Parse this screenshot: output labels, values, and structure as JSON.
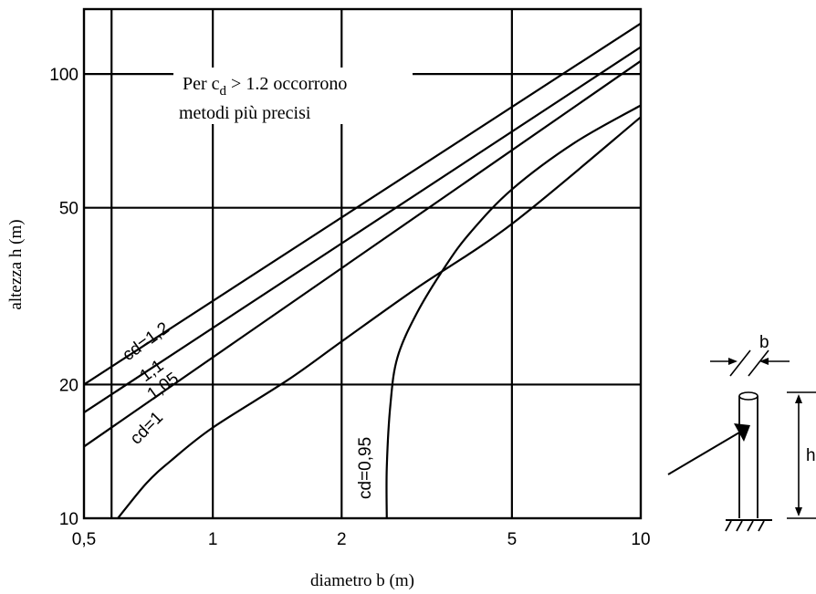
{
  "chart_data": {
    "type": "line",
    "title": "",
    "xlabel": "diametro b (m)",
    "ylabel": "altezza h (m)",
    "xscale": "log",
    "yscale": "log",
    "xlim": [
      0.5,
      10
    ],
    "ylim": [
      10,
      140
    ],
    "x_ticks": [
      {
        "value": 0.5,
        "label": "0,5"
      },
      {
        "value": 1,
        "label": "1"
      },
      {
        "value": 2,
        "label": "2"
      },
      {
        "value": 5,
        "label": "5"
      },
      {
        "value": 10,
        "label": "10"
      }
    ],
    "y_ticks": [
      {
        "value": 10,
        "label": "10"
      },
      {
        "value": 20,
        "label": "20"
      },
      {
        "value": 50,
        "label": "50"
      },
      {
        "value": 100,
        "label": "100"
      }
    ],
    "grid": true,
    "annotation": {
      "line1_prefix": "Per c",
      "line1_sub": "d",
      "line1_suffix": " > 1.2 occorrono",
      "line2": "metodi più precisi"
    },
    "series": [
      {
        "name": "cd=1,2",
        "x": [
          0.5,
          10
        ],
        "y": [
          20,
          130
        ]
      },
      {
        "name": "1,1",
        "x": [
          0.5,
          10
        ],
        "y": [
          17.3,
          115
        ]
      },
      {
        "name": "1,05",
        "x": [
          0.5,
          10
        ],
        "y": [
          14.5,
          107
        ]
      },
      {
        "name": "cd=1",
        "x": [
          0.6,
          0.7,
          0.8,
          1,
          1.5,
          2,
          3,
          5,
          10
        ],
        "y": [
          10,
          12,
          13.5,
          16,
          20.5,
          25,
          33,
          46,
          80
        ]
      },
      {
        "name": "cd=0,95",
        "x": [
          2.55,
          2.55,
          2.6,
          2.7,
          3,
          3.5,
          4,
          5,
          7,
          10
        ],
        "y": [
          10,
          13,
          18,
          23,
          29,
          37,
          44,
          55,
          70,
          85
        ]
      }
    ]
  },
  "diagram": {
    "label_b": "b",
    "label_h": "h"
  }
}
